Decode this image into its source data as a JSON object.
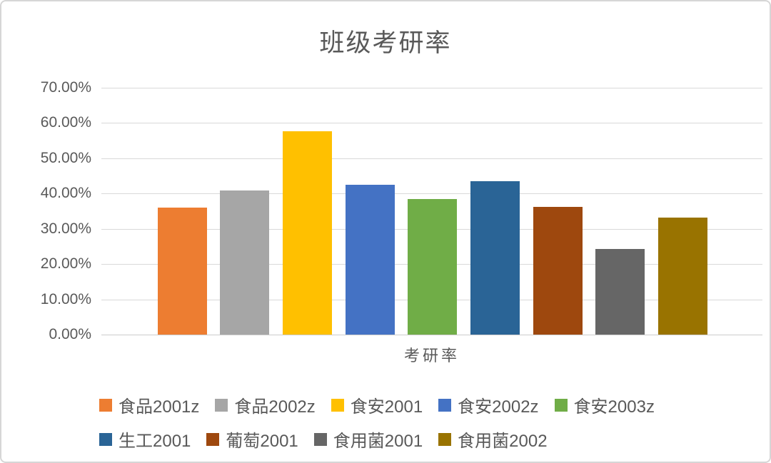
{
  "card": {
    "background": "#ffffff",
    "border_color": "#d6d6d6"
  },
  "chart_data": {
    "type": "bar",
    "title": "班级考研率",
    "xlabel": "考研率",
    "ylabel": "",
    "ylim": [
      0,
      70
    ],
    "y_tick_step": 10,
    "y_tick_labels": [
      "0.00%",
      "10.00%",
      "20.00%",
      "30.00%",
      "40.00%",
      "50.00%",
      "60.00%",
      "70.00%"
    ],
    "grid": true,
    "legend_position": "bottom",
    "legend_rows": [
      [
        0,
        1,
        2,
        3,
        4
      ],
      [
        5,
        6,
        7,
        8
      ]
    ],
    "categories": [
      "食品2001z",
      "食品2002z",
      "食安2001",
      "食安2002z",
      "食安2003z",
      "生工2001",
      "葡萄2001",
      "食用菌2001",
      "食用菌2002"
    ],
    "values": [
      36.0,
      40.9,
      57.7,
      42.4,
      38.5,
      43.4,
      36.2,
      24.2,
      33.2
    ],
    "series": [
      {
        "name": "食品2001z",
        "value": 36.0,
        "color": "#ED7D31"
      },
      {
        "name": "食品2002z",
        "value": 40.9,
        "color": "#A6A6A6"
      },
      {
        "name": "食安2001",
        "value": 57.7,
        "color": "#FFC000"
      },
      {
        "name": "食安2002z",
        "value": 42.4,
        "color": "#4472C4"
      },
      {
        "name": "食安2003z",
        "value": 38.5,
        "color": "#70AD47"
      },
      {
        "name": "生工2001",
        "value": 43.4,
        "color": "#2A6496"
      },
      {
        "name": "葡萄2001",
        "value": 36.2,
        "color": "#9E480E"
      },
      {
        "name": "食用菌2001",
        "value": 24.2,
        "color": "#666666"
      },
      {
        "name": "食用菌2002",
        "value": 33.2,
        "color": "#997300"
      }
    ],
    "text_color": "#595959",
    "gridline_color": "#d9d9d9"
  }
}
